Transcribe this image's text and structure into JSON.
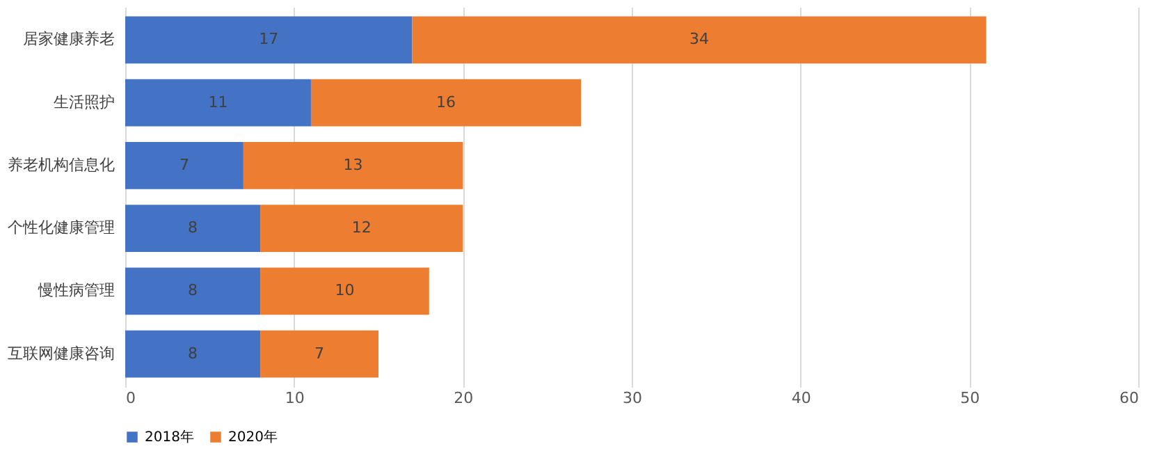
{
  "chart_data": {
    "type": "bar",
    "orientation": "horizontal",
    "stacked": true,
    "categories": [
      "居家健康养老",
      "生活照护",
      "养老机构信息化",
      "个性化健康管理",
      "慢性病管理",
      "互联网健康咨询"
    ],
    "series": [
      {
        "name": "2018年",
        "color": "#4472c4",
        "values": [
          17,
          11,
          7,
          8,
          8,
          8
        ]
      },
      {
        "name": "2020年",
        "color": "#ed7d31",
        "values": [
          34,
          16,
          13,
          12,
          10,
          7
        ]
      }
    ],
    "xlim": [
      0,
      60
    ],
    "xticks": [
      0,
      10,
      20,
      30,
      40,
      50,
      60
    ],
    "grid": "x",
    "legend": "bottom",
    "data_labels": true
  }
}
